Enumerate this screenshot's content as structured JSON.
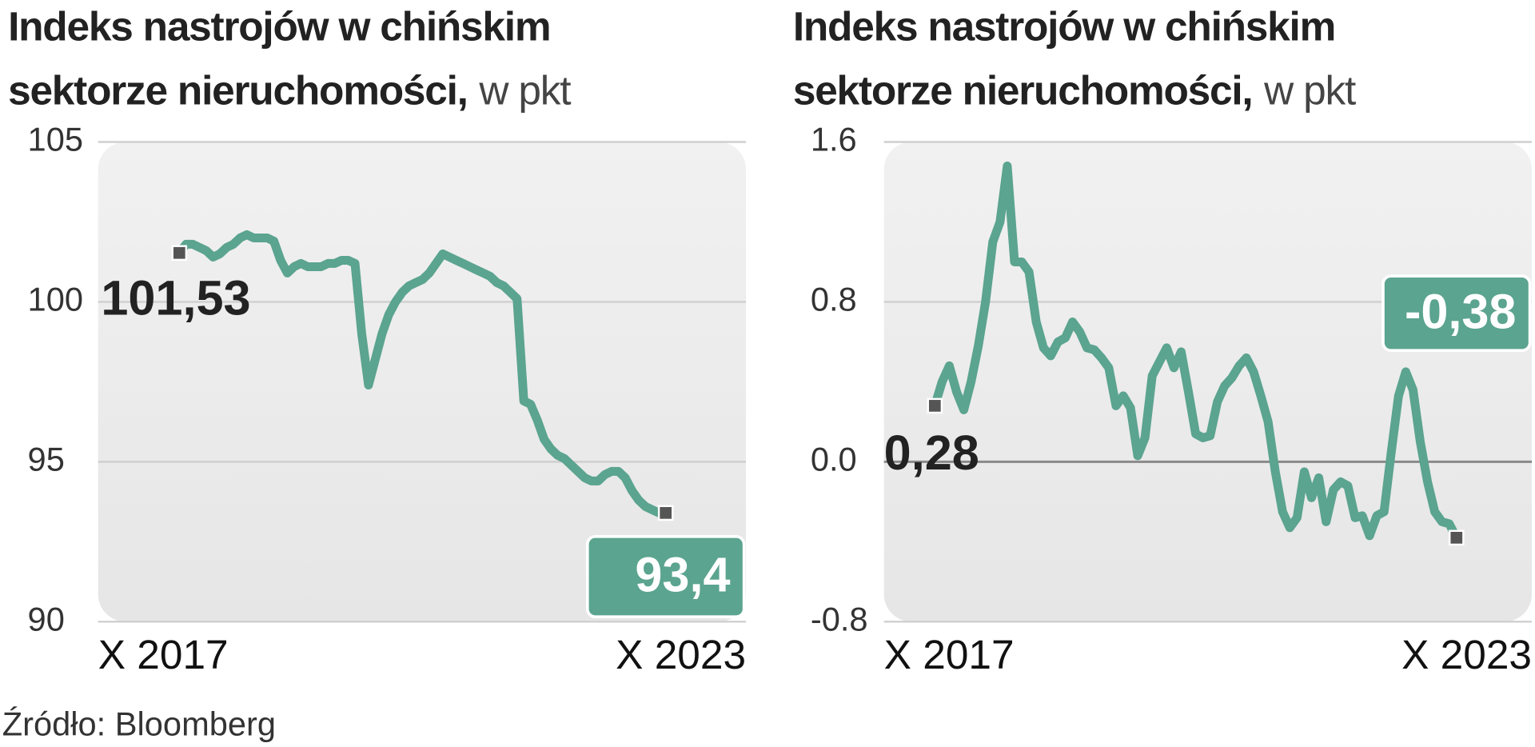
{
  "chart_data": [
    {
      "type": "line",
      "title": [
        "Indeks nastrojów w chińskim",
        "sektorze nieruchomości,"
      ],
      "unit": "w pkt",
      "categories": [
        "X 2017",
        null,
        null,
        null,
        null,
        null,
        null,
        null,
        null,
        null,
        null,
        null,
        null,
        null,
        null,
        null,
        null,
        null,
        null,
        null,
        null,
        null,
        null,
        null,
        null,
        null,
        null,
        null,
        null,
        null,
        null,
        null,
        null,
        null,
        null,
        null,
        null,
        null,
        null,
        null,
        null,
        null,
        null,
        null,
        null,
        null,
        null,
        null,
        null,
        null,
        null,
        null,
        null,
        null,
        null,
        null,
        null,
        null,
        null,
        null,
        null,
        null,
        null,
        null,
        null,
        null,
        null,
        null,
        null,
        null,
        null,
        null,
        "X 2023"
      ],
      "values": [
        101.53,
        101.8,
        101.8,
        101.7,
        101.6,
        101.4,
        101.5,
        101.7,
        101.8,
        102.0,
        102.1,
        102.0,
        102.0,
        102.0,
        101.9,
        101.3,
        100.9,
        101.1,
        101.2,
        101.1,
        101.1,
        101.1,
        101.2,
        101.2,
        101.3,
        101.3,
        101.2,
        99.0,
        97.4,
        98.2,
        99.0,
        99.6,
        100.0,
        100.3,
        100.5,
        100.6,
        100.7,
        100.9,
        101.2,
        101.5,
        101.4,
        101.3,
        101.2,
        101.1,
        101.0,
        100.9,
        100.8,
        100.6,
        100.5,
        100.3,
        100.1,
        96.9,
        96.8,
        96.3,
        95.7,
        95.4,
        95.2,
        95.1,
        94.9,
        94.7,
        94.5,
        94.4,
        94.4,
        94.6,
        94.7,
        94.7,
        94.5,
        94.1,
        93.8,
        93.6,
        93.5,
        93.4,
        93.4
      ],
      "value_labels": [
        "101,53",
        null,
        null,
        null,
        null,
        null,
        null,
        null,
        null,
        null,
        null,
        null,
        null,
        null,
        null,
        null,
        null,
        null,
        null,
        null,
        null,
        null,
        null,
        null,
        null,
        null,
        null,
        null,
        null,
        null,
        null,
        null,
        null,
        null,
        null,
        null,
        null,
        null,
        null,
        null,
        null,
        null,
        null,
        null,
        null,
        null,
        null,
        null,
        null,
        null,
        null,
        null,
        null,
        null,
        null,
        null,
        null,
        null,
        null,
        null,
        null,
        null,
        null,
        null,
        null,
        null,
        null,
        null,
        null,
        null,
        null,
        null,
        "93,4"
      ],
      "color": "#5ba48f",
      "ylim": [
        90,
        105
      ],
      "yticks": [
        90,
        95,
        100,
        105
      ],
      "grid": true
    },
    {
      "type": "line",
      "title": [
        "Indeks nastrojów w chińskim",
        "sektorze nieruchomości,"
      ],
      "unit": "w pkt",
      "categories": [
        "X 2017",
        null,
        null,
        null,
        null,
        null,
        null,
        null,
        null,
        null,
        null,
        null,
        null,
        null,
        null,
        null,
        null,
        null,
        null,
        null,
        null,
        null,
        null,
        null,
        null,
        null,
        null,
        null,
        null,
        null,
        null,
        null,
        null,
        null,
        null,
        null,
        null,
        null,
        null,
        null,
        null,
        null,
        null,
        null,
        null,
        null,
        null,
        null,
        null,
        null,
        null,
        null,
        null,
        null,
        null,
        null,
        null,
        null,
        null,
        null,
        null,
        null,
        null,
        null,
        null,
        null,
        null,
        null,
        null,
        null,
        null,
        null,
        "X 2023"
      ],
      "values": [
        0.28,
        0.4,
        0.48,
        0.35,
        0.26,
        0.4,
        0.58,
        0.8,
        1.1,
        1.2,
        1.48,
        1.0,
        1.0,
        0.95,
        0.7,
        0.57,
        0.53,
        0.6,
        0.62,
        0.7,
        0.65,
        0.57,
        0.56,
        0.52,
        0.47,
        0.28,
        0.33,
        0.27,
        0.03,
        0.12,
        0.43,
        0.5,
        0.57,
        0.47,
        0.55,
        0.35,
        0.14,
        0.12,
        0.13,
        0.3,
        0.38,
        0.42,
        0.48,
        0.52,
        0.45,
        0.33,
        0.2,
        -0.05,
        -0.25,
        -0.33,
        -0.28,
        -0.05,
        -0.18,
        -0.08,
        -0.3,
        -0.14,
        -0.1,
        -0.12,
        -0.28,
        -0.27,
        -0.37,
        -0.27,
        -0.25,
        0.05,
        0.33,
        0.45,
        0.36,
        0.1,
        -0.1,
        -0.25,
        -0.3,
        -0.31,
        -0.38
      ],
      "value_labels": [
        "0,28",
        null,
        null,
        null,
        null,
        null,
        null,
        null,
        null,
        null,
        null,
        null,
        null,
        null,
        null,
        null,
        null,
        null,
        null,
        null,
        null,
        null,
        null,
        null,
        null,
        null,
        null,
        null,
        null,
        null,
        null,
        null,
        null,
        null,
        null,
        null,
        null,
        null,
        null,
        null,
        null,
        null,
        null,
        null,
        null,
        null,
        null,
        null,
        null,
        null,
        null,
        null,
        null,
        null,
        null,
        null,
        null,
        null,
        null,
        null,
        null,
        null,
        null,
        null,
        null,
        null,
        null,
        null,
        null,
        null,
        null,
        null,
        "-0,38"
      ],
      "color": "#5ba48f",
      "ylim": [
        -0.8,
        1.6
      ],
      "yticks": [
        -0.8,
        {
          "value": 0,
          "label": "0.0"
        },
        0.8,
        1.6
      ],
      "grid": true
    }
  ],
  "source": "Źródło: Bloomberg"
}
